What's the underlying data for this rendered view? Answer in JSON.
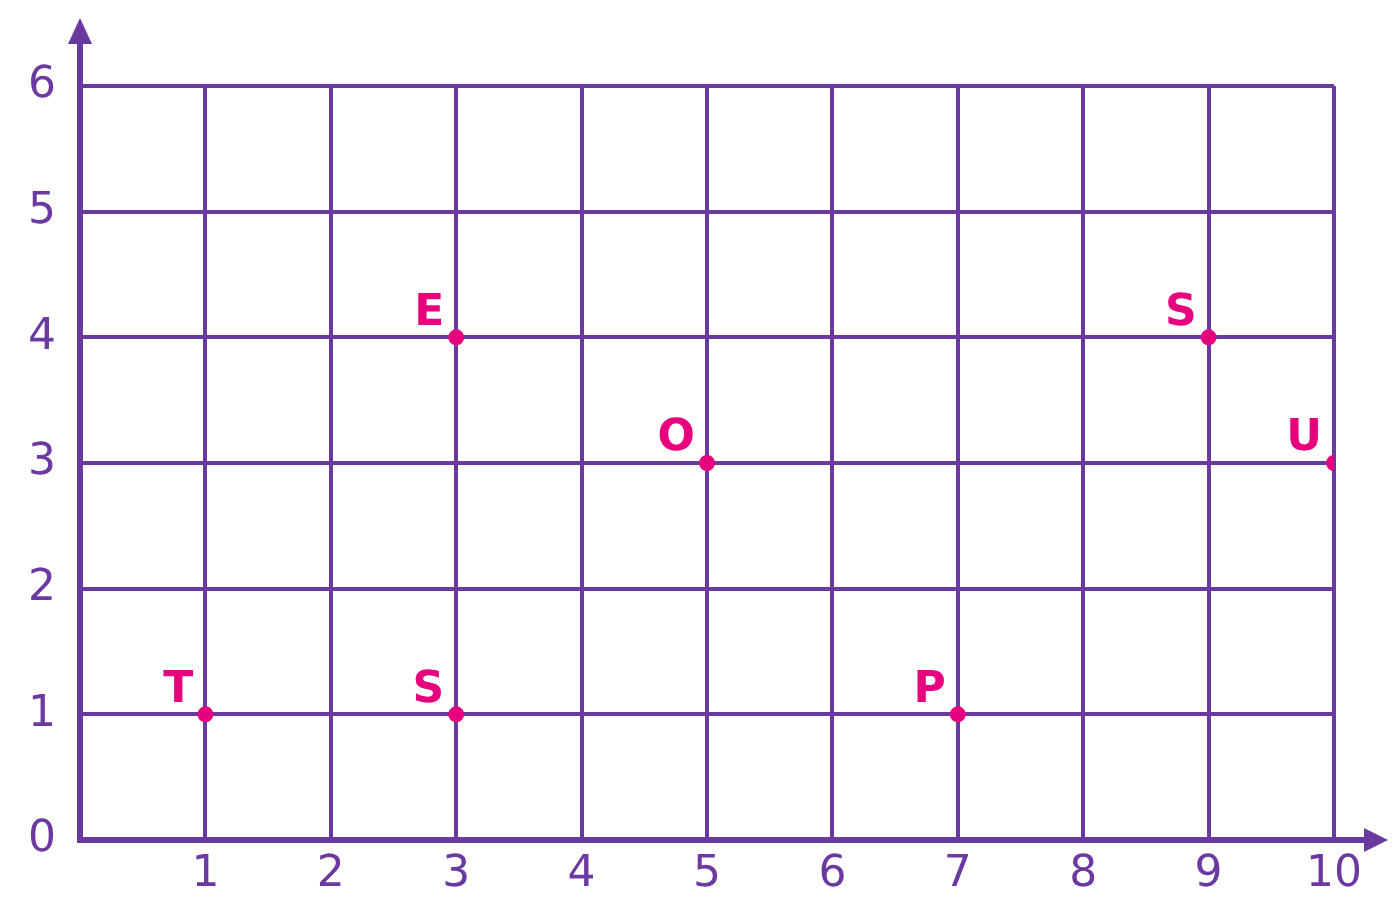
{
  "chart_data": {
    "type": "scatter",
    "x": [
      1,
      3,
      3,
      5,
      7,
      9,
      10
    ],
    "values": [
      1,
      1,
      4,
      3,
      1,
      4,
      3
    ],
    "color": "#e6007e",
    "marker": "circle",
    "xlim": [
      0,
      10
    ],
    "xticks": [
      {
        "value": 0,
        "label": null
      },
      1,
      2,
      3,
      4,
      5,
      6,
      7,
      8,
      9,
      10
    ],
    "ylim": [
      0,
      6
    ],
    "yticks": [
      0,
      1,
      2,
      3,
      4,
      5,
      6
    ],
    "grid": true,
    "legend": false,
    "annotations": [
      {
        "text": "T",
        "x": 1,
        "y": 1
      },
      {
        "text": "S",
        "x": 3,
        "y": 1
      },
      {
        "text": "E",
        "x": 3,
        "y": 4
      },
      {
        "text": "O",
        "x": 5,
        "y": 3
      },
      {
        "text": "P",
        "x": 7,
        "y": 1
      },
      {
        "text": "S",
        "x": 9,
        "y": 4
      },
      {
        "text": "U",
        "x": 10,
        "y": 3
      }
    ]
  }
}
